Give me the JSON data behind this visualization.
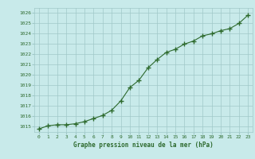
{
  "x": [
    0,
    1,
    2,
    3,
    4,
    5,
    6,
    7,
    8,
    9,
    10,
    11,
    12,
    13,
    14,
    15,
    16,
    17,
    18,
    19,
    20,
    21,
    22,
    23
  ],
  "y": [
    1014.8,
    1015.1,
    1015.2,
    1015.2,
    1015.3,
    1015.5,
    1015.8,
    1016.1,
    1016.6,
    1017.5,
    1018.8,
    1019.5,
    1020.7,
    1021.5,
    1022.2,
    1022.5,
    1023.0,
    1023.3,
    1023.8,
    1024.0,
    1024.3,
    1024.5,
    1025.0,
    1025.8
  ],
  "line_color": "#2d6a2d",
  "marker": "+",
  "background_color": "#c8eaea",
  "grid_color": "#a0c8c8",
  "text_color": "#2d6a2d",
  "xlabel": "Graphe pression niveau de la mer (hPa)",
  "ylim_min": 1014.5,
  "ylim_max": 1026.5,
  "xlim_min": -0.5,
  "xlim_max": 23.5,
  "yticks": [
    1015,
    1016,
    1017,
    1018,
    1019,
    1020,
    1021,
    1022,
    1023,
    1024,
    1025,
    1026
  ],
  "xticks": [
    0,
    1,
    2,
    3,
    4,
    5,
    6,
    7,
    8,
    9,
    10,
    11,
    12,
    13,
    14,
    15,
    16,
    17,
    18,
    19,
    20,
    21,
    22,
    23
  ]
}
